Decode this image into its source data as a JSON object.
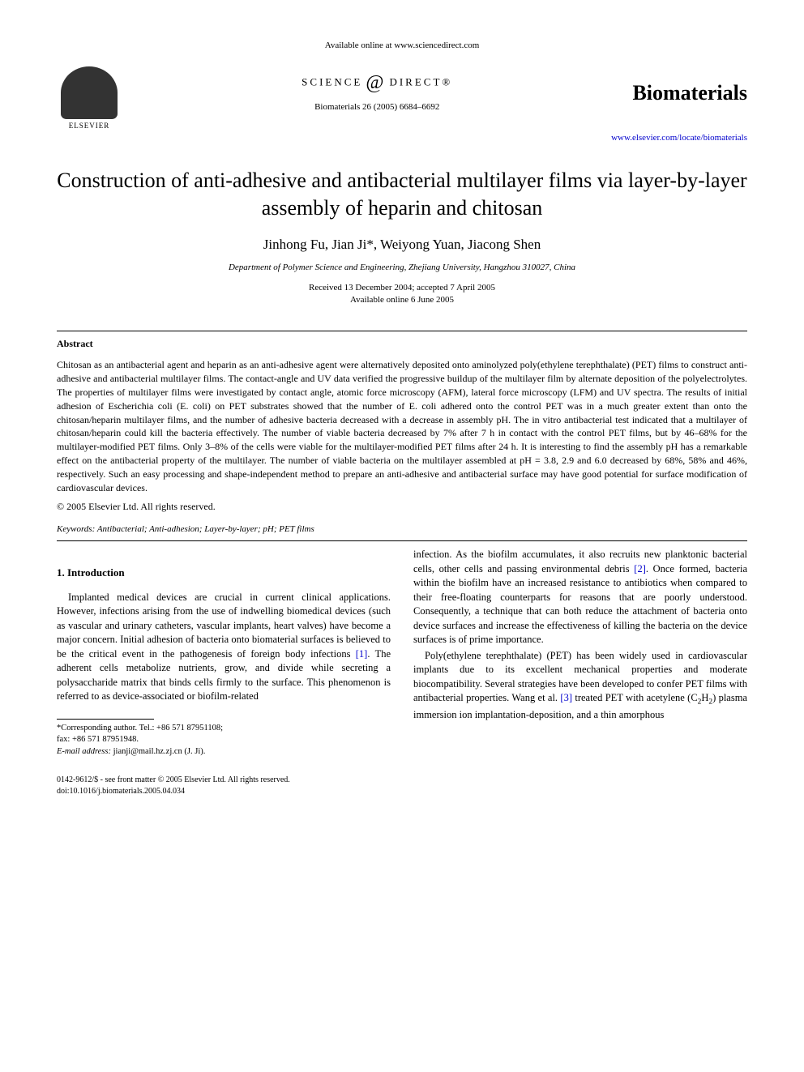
{
  "header": {
    "available_online": "Available online at www.sciencedirect.com",
    "sd_logo_left": "SCIENCE",
    "sd_logo_right": "DIRECT®",
    "publisher": "ELSEVIER",
    "journal_name": "Biomaterials",
    "citation": "Biomaterials 26 (2005) 6684–6692",
    "journal_url": "www.elsevier.com/locate/biomaterials"
  },
  "article": {
    "title": "Construction of anti-adhesive and antibacterial multilayer films via layer-by-layer assembly of heparin and chitosan",
    "authors": "Jinhong Fu, Jian Ji*, Weiyong Yuan, Jiacong Shen",
    "affiliation": "Department of Polymer Science and Engineering, Zhejiang University, Hangzhou 310027, China",
    "received": "Received 13 December 2004; accepted 7 April 2005",
    "available": "Available online 6 June 2005"
  },
  "abstract": {
    "heading": "Abstract",
    "body": "Chitosan as an antibacterial agent and heparin as an anti-adhesive agent were alternatively deposited onto aminolyzed poly(ethylene terephthalate) (PET) films to construct anti-adhesive and antibacterial multilayer films. The contact-angle and UV data verified the progressive buildup of the multilayer film by alternate deposition of the polyelectrolytes. The properties of multilayer films were investigated by contact angle, atomic force microscopy (AFM), lateral force microscopy (LFM) and UV spectra. The results of initial adhesion of Escherichia coli (E. coli) on PET substrates showed that the number of E. coli adhered onto the control PET was in a much greater extent than onto the chitosan/heparin multilayer films, and the number of adhesive bacteria decreased with a decrease in assembly pH. The in vitro antibacterial test indicated that a multilayer of chitosan/heparin could kill the bacteria effectively. The number of viable bacteria decreased by 7% after 7 h in contact with the control PET films, but by 46–68% for the multilayer-modified PET films. Only 3–8% of the cells were viable for the multilayer-modified PET films after 24 h. It is interesting to find the assembly pH has a remarkable effect on the antibacterial property of the multilayer. The number of viable bacteria on the multilayer assembled at pH = 3.8, 2.9 and 6.0 decreased by 68%, 58% and 46%, respectively. Such an easy processing and shape-independent method to prepare an anti-adhesive and antibacterial surface may have good potential for surface modification of cardiovascular devices.",
    "copyright": "© 2005 Elsevier Ltd. All rights reserved.",
    "keywords_label": "Keywords:",
    "keywords": "Antibacterial; Anti-adhesion; Layer-by-layer; pH; PET films"
  },
  "intro": {
    "heading": "1. Introduction",
    "col1_p1_a": "Implanted medical devices are crucial in current clinical applications. However, infections arising from the use of indwelling biomedical devices (such as vascular and urinary catheters, vascular implants, heart valves) have become a major concern. Initial adhesion of bacteria onto biomaterial surfaces is believed to be the critical event in the pathogenesis of foreign body infections ",
    "ref1": "[1]",
    "col1_p1_b": ". The adherent cells metabolize nutrients, grow, and divide while secreting a polysaccharide matrix that binds cells firmly to the surface. This phenomenon is referred to as device-associated or biofilm-related",
    "col2_p1_a": "infection. As the biofilm accumulates, it also recruits new planktonic bacterial cells, other cells and passing environmental debris ",
    "ref2": "[2]",
    "col2_p1_b": ". Once formed, bacteria within the biofilm have an increased resistance to antibiotics when compared to their free-floating counterparts for reasons that are poorly understood. Consequently, a technique that can both reduce the attachment of bacteria onto device surfaces and increase the effectiveness of killing the bacteria on the device surfaces is of prime importance.",
    "col2_p2_a": "Poly(ethylene terephthalate) (PET) has been widely used in cardiovascular implants due to its excellent mechanical properties and moderate biocompatibility. Several strategies have been developed to confer PET films with antibacterial properties. Wang et al. ",
    "ref3": "[3]",
    "col2_p2_b": " treated PET with acetylene (C",
    "col2_p2_c": "H",
    "col2_p2_d": ") plasma immersion ion implantation-deposition, and a thin amorphous"
  },
  "footnote": {
    "corr_label": "*Corresponding author. Tel.: ",
    "tel": "+86 571 87951108;",
    "fax_label": "fax: ",
    "fax": "+86 571 87951948.",
    "email_label": "E-mail address:",
    "email": "jianji@mail.hz.zj.cn (J. Ji)."
  },
  "footer": {
    "line1": "0142-9612/$ - see front matter © 2005 Elsevier Ltd. All rights reserved.",
    "line2": "doi:10.1016/j.biomaterials.2005.04.034"
  }
}
